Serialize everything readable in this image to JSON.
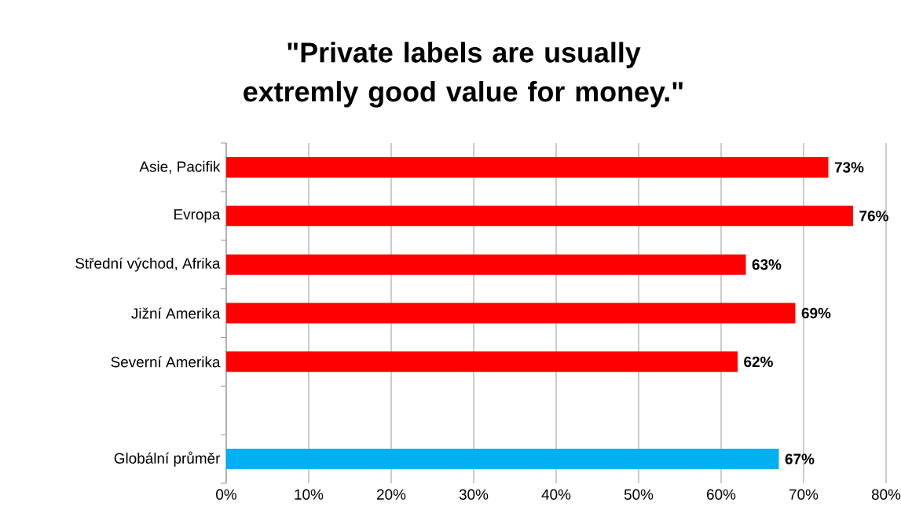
{
  "chart_data": {
    "type": "bar",
    "orientation": "horizontal",
    "title": "\"Private labels are usually extremly good value for money.\"",
    "categories": [
      "Asie, Pacifik",
      "Evropa",
      "Střední východ, Afrika",
      "Jižní Amerika",
      "Severní Amerika",
      null,
      "Globální průměr"
    ],
    "values": [
      73,
      76,
      63,
      69,
      62,
      null,
      67
    ],
    "colors": [
      "#ff0000",
      "#ff0000",
      "#ff0000",
      "#ff0000",
      "#ff0000",
      "#ff0000",
      "#00b0f0"
    ],
    "value_labels": [
      "73%",
      "76%",
      "63%",
      "69%",
      "62%",
      null,
      "67%"
    ],
    "xlim": [
      0,
      80
    ],
    "xticks": [
      {
        "value": 0,
        "label": "0%"
      },
      {
        "value": 10,
        "label": "10%"
      },
      {
        "value": 20,
        "label": "20%"
      },
      {
        "value": 30,
        "label": "30%"
      },
      {
        "value": 40,
        "label": "40%"
      },
      {
        "value": 50,
        "label": "50%"
      },
      {
        "value": 60,
        "label": "60%"
      },
      {
        "value": 70,
        "label": "70%"
      },
      {
        "value": 80,
        "label": "80%"
      }
    ],
    "grid": "x"
  }
}
